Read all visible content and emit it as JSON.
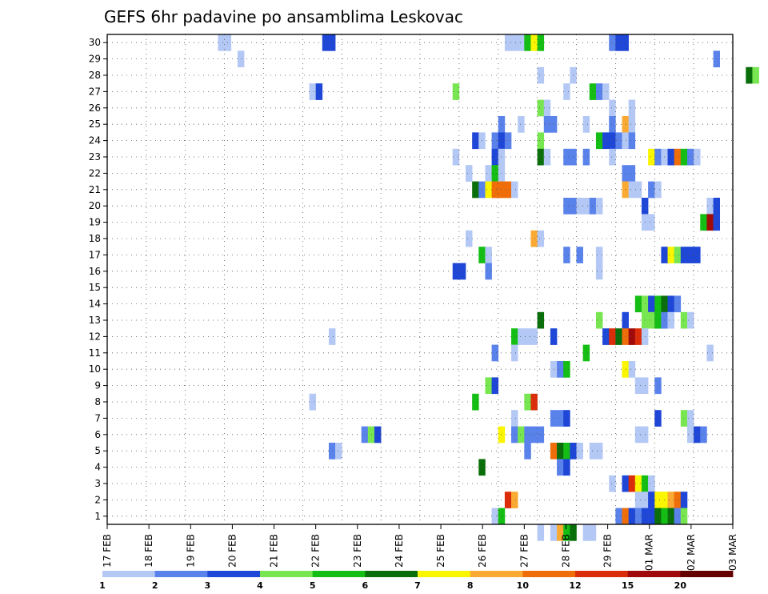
{
  "chart_data": {
    "type": "heatmap",
    "title": "GEFS 6hr padavine po ansamblima Leskovac",
    "xlabel": "",
    "ylabel": "",
    "x_tick_labels": [
      "17 FEB",
      "18 FEB",
      "19 FEB",
      "20 FEB",
      "21 FEB",
      "22 FEB",
      "23 FEB",
      "24 FEB",
      "25 FEB",
      "26 FEB",
      "27 FEB",
      "28 FEB",
      "29 FEB",
      "01 MAR",
      "02 MAR",
      "03 MAR"
    ],
    "y_tick_labels": [
      "1",
      "2",
      "3",
      "4",
      "5",
      "6",
      "7",
      "8",
      "9",
      "10",
      "11",
      "12",
      "13",
      "14",
      "15",
      "16",
      "17",
      "18",
      "19",
      "20",
      "21",
      "22",
      "23",
      "24",
      "25",
      "26",
      "27",
      "28",
      "29",
      "30"
    ],
    "x_range": [
      0,
      61
    ],
    "y_range": [
      0.5,
      30.5
    ],
    "grid": true,
    "legend_position": "bottom",
    "legend": {
      "labels": [
        "1",
        "2",
        "3",
        "4",
        "5",
        "6",
        "7",
        "8",
        "10",
        "12",
        "15",
        "20"
      ],
      "colors": [
        "#b4c8f5",
        "#5a82eb",
        "#1e46d7",
        "#78e650",
        "#14be14",
        "#0a6e0a",
        "#faf500",
        "#faaa32",
        "#f06e0a",
        "#dc2d0a",
        "#a00a0a",
        "#640000"
      ]
    },
    "cells": [
      [
        17,
        30,
        1
      ],
      [
        18,
        30,
        1
      ],
      [
        33,
        30,
        3
      ],
      [
        34,
        30,
        3
      ],
      [
        61,
        30,
        1
      ],
      [
        62,
        30,
        1
      ],
      [
        63,
        30,
        1
      ],
      [
        64,
        30,
        5
      ],
      [
        65,
        30,
        7
      ],
      [
        66,
        30,
        5
      ],
      [
        77,
        30,
        2
      ],
      [
        78,
        30,
        3
      ],
      [
        79,
        30,
        3
      ],
      [
        20,
        29,
        1
      ],
      [
        93,
        29,
        2
      ],
      [
        66,
        28,
        1
      ],
      [
        71,
        28,
        1
      ],
      [
        98,
        28,
        6
      ],
      [
        99,
        28,
        4
      ],
      [
        31,
        27,
        1
      ],
      [
        32,
        27,
        3
      ],
      [
        53,
        27,
        4
      ],
      [
        70,
        27,
        1
      ],
      [
        74,
        27,
        5
      ],
      [
        75,
        27,
        2
      ],
      [
        76,
        27,
        1
      ],
      [
        66,
        26,
        4
      ],
      [
        67,
        26,
        1
      ],
      [
        77,
        26,
        1
      ],
      [
        80,
        26,
        1
      ],
      [
        60,
        25,
        2
      ],
      [
        63,
        25,
        1
      ],
      [
        67,
        25,
        2
      ],
      [
        68,
        25,
        2
      ],
      [
        73,
        25,
        1
      ],
      [
        77,
        25,
        2
      ],
      [
        79,
        25,
        8
      ],
      [
        80,
        25,
        1
      ],
      [
        56,
        24,
        3
      ],
      [
        57,
        24,
        1
      ],
      [
        59,
        24,
        2
      ],
      [
        60,
        24,
        3
      ],
      [
        61,
        24,
        2
      ],
      [
        66,
        24,
        4
      ],
      [
        75,
        24,
        5
      ],
      [
        76,
        24,
        3
      ],
      [
        77,
        24,
        3
      ],
      [
        78,
        24,
        2
      ],
      [
        79,
        24,
        1
      ],
      [
        80,
        24,
        2
      ],
      [
        53,
        23,
        1
      ],
      [
        59,
        23,
        3
      ],
      [
        60,
        23,
        1
      ],
      [
        66,
        23,
        6
      ],
      [
        67,
        23,
        1
      ],
      [
        70,
        23,
        2
      ],
      [
        71,
        23,
        2
      ],
      [
        73,
        23,
        2
      ],
      [
        77,
        23,
        1
      ],
      [
        83,
        23,
        7
      ],
      [
        84,
        23,
        2
      ],
      [
        85,
        23,
        1
      ],
      [
        86,
        23,
        3
      ],
      [
        87,
        23,
        9
      ],
      [
        88,
        23,
        5
      ],
      [
        89,
        23,
        2
      ],
      [
        90,
        23,
        1
      ],
      [
        55,
        22,
        1
      ],
      [
        58,
        22,
        1
      ],
      [
        59,
        22,
        5
      ],
      [
        60,
        22,
        1
      ],
      [
        79,
        22,
        2
      ],
      [
        80,
        22,
        2
      ],
      [
        56,
        21,
        6
      ],
      [
        57,
        21,
        2
      ],
      [
        58,
        21,
        7
      ],
      [
        59,
        21,
        9
      ],
      [
        60,
        21,
        9
      ],
      [
        61,
        21,
        9
      ],
      [
        62,
        21,
        1
      ],
      [
        79,
        21,
        8
      ],
      [
        80,
        21,
        1
      ],
      [
        81,
        21,
        1
      ],
      [
        83,
        21,
        2
      ],
      [
        84,
        21,
        1
      ],
      [
        70,
        20,
        2
      ],
      [
        71,
        20,
        2
      ],
      [
        72,
        20,
        1
      ],
      [
        73,
        20,
        1
      ],
      [
        74,
        20,
        2
      ],
      [
        75,
        20,
        1
      ],
      [
        82,
        20,
        3
      ],
      [
        92,
        20,
        1
      ],
      [
        93,
        20,
        3
      ],
      [
        82,
        19,
        1
      ],
      [
        83,
        19,
        1
      ],
      [
        91,
        19,
        5
      ],
      [
        92,
        19,
        11
      ],
      [
        93,
        19,
        3
      ],
      [
        55,
        18,
        1
      ],
      [
        65,
        18,
        8
      ],
      [
        66,
        18,
        1
      ],
      [
        57,
        17,
        5
      ],
      [
        58,
        17,
        1
      ],
      [
        70,
        17,
        2
      ],
      [
        72,
        17,
        2
      ],
      [
        75,
        17,
        1
      ],
      [
        85,
        17,
        3
      ],
      [
        86,
        17,
        7
      ],
      [
        87,
        17,
        4
      ],
      [
        88,
        17,
        3
      ],
      [
        89,
        17,
        3
      ],
      [
        90,
        17,
        3
      ],
      [
        53,
        16,
        3
      ],
      [
        54,
        16,
        3
      ],
      [
        58,
        16,
        2
      ],
      [
        75,
        16,
        1
      ],
      [
        81,
        14,
        5
      ],
      [
        82,
        14,
        4
      ],
      [
        83,
        14,
        3
      ],
      [
        84,
        14,
        5
      ],
      [
        85,
        14,
        6
      ],
      [
        86,
        14,
        3
      ],
      [
        87,
        14,
        2
      ],
      [
        66,
        13,
        6
      ],
      [
        75,
        13,
        4
      ],
      [
        79,
        13,
        3
      ],
      [
        82,
        13,
        4
      ],
      [
        83,
        13,
        4
      ],
      [
        84,
        13,
        5
      ],
      [
        85,
        13,
        2
      ],
      [
        86,
        13,
        1
      ],
      [
        88,
        13,
        4
      ],
      [
        89,
        13,
        1
      ],
      [
        34,
        12,
        1
      ],
      [
        62,
        12,
        5
      ],
      [
        63,
        12,
        1
      ],
      [
        64,
        12,
        1
      ],
      [
        65,
        12,
        1
      ],
      [
        68,
        12,
        3
      ],
      [
        76,
        12,
        3
      ],
      [
        77,
        12,
        10
      ],
      [
        78,
        12,
        6
      ],
      [
        79,
        12,
        9
      ],
      [
        80,
        12,
        11
      ],
      [
        81,
        12,
        10
      ],
      [
        82,
        12,
        1
      ],
      [
        59,
        11,
        2
      ],
      [
        62,
        11,
        1
      ],
      [
        73,
        11,
        5
      ],
      [
        92,
        11,
        1
      ],
      [
        68,
        10,
        1
      ],
      [
        69,
        10,
        2
      ],
      [
        70,
        10,
        5
      ],
      [
        79,
        10,
        7
      ],
      [
        80,
        10,
        1
      ],
      [
        58,
        9,
        4
      ],
      [
        59,
        9,
        3
      ],
      [
        81,
        9,
        1
      ],
      [
        82,
        9,
        1
      ],
      [
        84,
        9,
        2
      ],
      [
        31,
        8,
        1
      ],
      [
        56,
        8,
        5
      ],
      [
        64,
        8,
        4
      ],
      [
        65,
        8,
        10
      ],
      [
        62,
        7,
        1
      ],
      [
        68,
        7,
        2
      ],
      [
        69,
        7,
        2
      ],
      [
        70,
        7,
        3
      ],
      [
        84,
        7,
        3
      ],
      [
        88,
        7,
        4
      ],
      [
        89,
        7,
        1
      ],
      [
        39,
        6,
        2
      ],
      [
        40,
        6,
        4
      ],
      [
        41,
        6,
        3
      ],
      [
        60,
        6,
        7
      ],
      [
        62,
        6,
        2
      ],
      [
        63,
        6,
        4
      ],
      [
        64,
        6,
        2
      ],
      [
        65,
        6,
        2
      ],
      [
        66,
        6,
        2
      ],
      [
        81,
        6,
        1
      ],
      [
        82,
        6,
        1
      ],
      [
        89,
        6,
        1
      ],
      [
        90,
        6,
        3
      ],
      [
        91,
        6,
        2
      ],
      [
        34,
        5,
        2
      ],
      [
        35,
        5,
        1
      ],
      [
        64,
        5,
        2
      ],
      [
        68,
        5,
        9
      ],
      [
        69,
        5,
        6
      ],
      [
        70,
        5,
        5
      ],
      [
        71,
        5,
        3
      ],
      [
        72,
        5,
        1
      ],
      [
        74,
        5,
        1
      ],
      [
        75,
        5,
        1
      ],
      [
        57,
        4,
        6
      ],
      [
        69,
        4,
        2
      ],
      [
        70,
        4,
        3
      ],
      [
        77,
        3,
        1
      ],
      [
        79,
        3,
        3
      ],
      [
        80,
        3,
        10
      ],
      [
        81,
        3,
        7
      ],
      [
        82,
        3,
        5
      ],
      [
        83,
        3,
        1
      ],
      [
        61,
        2,
        10
      ],
      [
        62,
        2,
        8
      ],
      [
        81,
        2,
        1
      ],
      [
        82,
        2,
        1
      ],
      [
        83,
        2,
        3
      ],
      [
        84,
        2,
        7
      ],
      [
        85,
        2,
        7
      ],
      [
        86,
        2,
        8
      ],
      [
        87,
        2,
        9
      ],
      [
        88,
        2,
        3
      ],
      [
        59,
        1,
        1
      ],
      [
        60,
        1,
        5
      ],
      [
        78,
        1,
        2
      ],
      [
        79,
        1,
        9
      ],
      [
        80,
        1,
        3
      ],
      [
        81,
        1,
        2
      ],
      [
        82,
        1,
        3
      ],
      [
        83,
        1,
        3
      ],
      [
        84,
        1,
        6
      ],
      [
        85,
        1,
        5
      ],
      [
        86,
        1,
        6
      ],
      [
        87,
        1,
        2
      ],
      [
        88,
        1,
        4
      ],
      [
        66,
        0,
        1
      ],
      [
        68,
        0,
        1
      ],
      [
        69,
        0,
        8
      ],
      [
        70,
        0,
        5
      ],
      [
        71,
        0,
        6
      ],
      [
        73,
        0,
        1
      ],
      [
        74,
        0,
        1
      ]
    ]
  }
}
